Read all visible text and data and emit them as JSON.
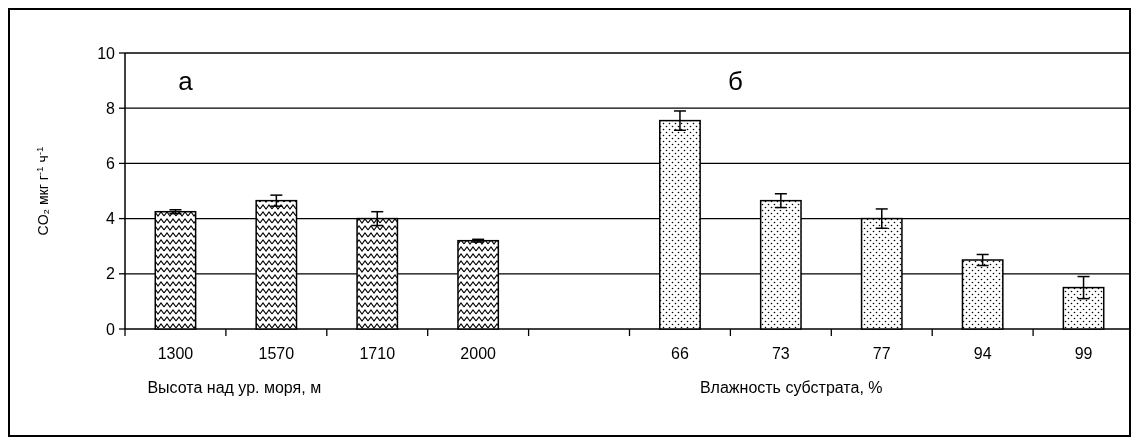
{
  "chart_data": {
    "type": "bar",
    "ylabel": "CO₂ мкг г$^{-1}$ ч$^{-1}$",
    "xlabel": "Высота над ур. моря, м",
    "annotations": [
      "а",
      "б",
      "Влажность субстрата, %"
    ],
    "categories": [
      "1300",
      "1570",
      "1710",
      "2000",
      null,
      "66",
      "73",
      "77",
      "94",
      "99"
    ],
    "series": [
      {
        "color": "#000000",
        "values": [
          4.25,
          4.65,
          4.0,
          3.2,
          null,
          null,
          null,
          null,
          null,
          null
        ],
        "errors": [
          0.07,
          0.2,
          0.25,
          0.05,
          null,
          null,
          null,
          null,
          null,
          null
        ]
      },
      {
        "color": "#000000",
        "values": [
          null,
          null,
          null,
          null,
          null,
          7.55,
          4.65,
          4.0,
          2.5,
          1.5
        ],
        "errors": [
          null,
          null,
          null,
          null,
          null,
          0.35,
          0.25,
          0.35,
          0.2,
          0.4
        ]
      }
    ],
    "ylim": [
      0,
      10
    ],
    "yticks": [
      0,
      2,
      4,
      6,
      8,
      10
    ],
    "grid": "y"
  }
}
